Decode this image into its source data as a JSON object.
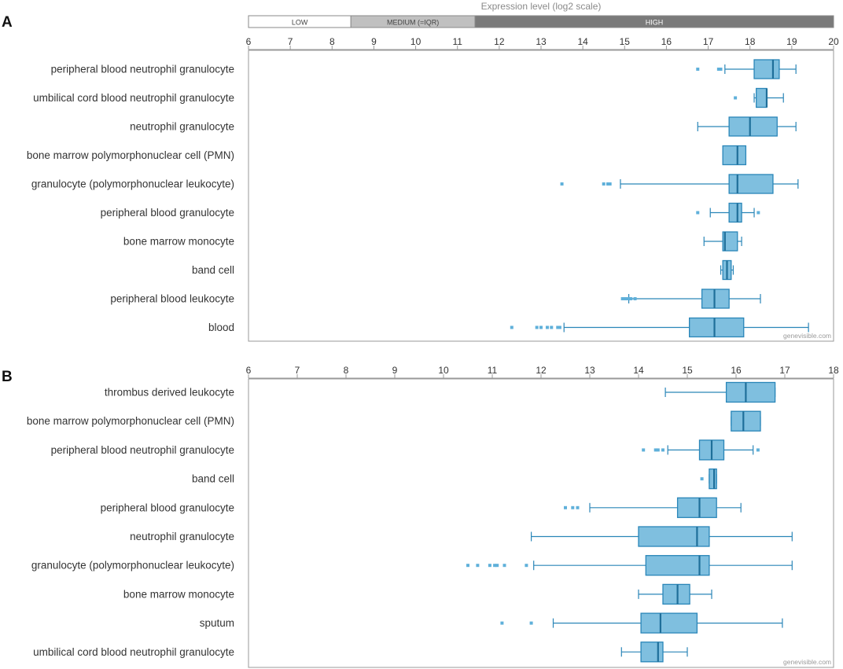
{
  "header": {
    "title": "Expression level (log2 scale)",
    "bands": [
      {
        "label": "LOW",
        "from": 6,
        "to": 8.45,
        "fill": "#ffffff",
        "text_color": "#444444"
      },
      {
        "label": "MEDIUM (=IQR)",
        "from": 8.45,
        "to": 11.42,
        "fill": "#c0c0c0",
        "text_color": "#444444"
      },
      {
        "label": "HIGH",
        "from": 11.42,
        "to": 20,
        "fill": "#7a7a7a",
        "text_color": "#ffffff"
      }
    ]
  },
  "watermark": "genevisible.com",
  "colors": {
    "box_fill": "#7fbfdf",
    "box_stroke": "#2a86b8",
    "whisker": "#2a86b8",
    "outlier": "#5fb0da",
    "frame": "#999999"
  },
  "chart_data": [
    {
      "type": "boxplot",
      "panel_label": "A",
      "xlabel": "Expression level (log2 scale)",
      "xlim": [
        6,
        20
      ],
      "ticks": [
        6,
        7,
        8,
        9,
        10,
        11,
        12,
        13,
        14,
        15,
        16,
        17,
        18,
        19,
        20
      ],
      "categories": [
        {
          "label": "peripheral blood neutrophil granulocyte",
          "whisker_low": 17.4,
          "q1": 18.1,
          "median": 18.55,
          "q3": 18.7,
          "whisker_high": 19.1,
          "outliers": [
            16.75,
            17.25,
            17.3
          ]
        },
        {
          "label": "umbilical cord blood neutrophil granulocyte",
          "whisker_low": 18.1,
          "q1": 18.15,
          "median": 18.4,
          "q3": 18.4,
          "whisker_high": 18.8,
          "outliers": [
            17.65
          ]
        },
        {
          "label": "neutrophil granulocyte",
          "whisker_low": 16.75,
          "q1": 17.5,
          "median": 18.0,
          "q3": 18.65,
          "whisker_high": 19.1,
          "outliers": []
        },
        {
          "label": "bone marrow polymorphonuclear cell (PMN)",
          "whisker_low": 17.35,
          "q1": 17.35,
          "median": 17.7,
          "q3": 17.9,
          "whisker_high": 17.9,
          "outliers": []
        },
        {
          "label": "granulocyte (polymorphonuclear leukocyte)",
          "whisker_low": 14.9,
          "q1": 17.5,
          "median": 17.7,
          "q3": 18.55,
          "whisker_high": 19.15,
          "outliers": [
            13.5,
            14.5,
            14.6,
            14.65
          ]
        },
        {
          "label": "peripheral blood granulocyte",
          "whisker_low": 17.05,
          "q1": 17.5,
          "median": 17.7,
          "q3": 17.8,
          "whisker_high": 18.1,
          "outliers": [
            16.75,
            18.2
          ]
        },
        {
          "label": "bone marrow monocyte",
          "whisker_low": 16.9,
          "q1": 17.35,
          "median": 17.4,
          "q3": 17.7,
          "whisker_high": 17.8,
          "outliers": []
        },
        {
          "label": "band cell",
          "whisker_low": 17.3,
          "q1": 17.35,
          "median": 17.45,
          "q3": 17.55,
          "whisker_high": 17.6,
          "outliers": []
        },
        {
          "label": "peripheral blood leukocyte",
          "whisker_low": 15.1,
          "q1": 16.85,
          "median": 17.15,
          "q3": 17.5,
          "whisker_high": 18.25,
          "outliers": [
            14.95,
            15.0,
            15.05,
            15.1,
            15.15,
            15.25
          ]
        },
        {
          "label": "blood",
          "whisker_low": 13.55,
          "q1": 16.55,
          "median": 17.15,
          "q3": 17.85,
          "whisker_high": 19.4,
          "outliers": [
            12.3,
            12.9,
            13.0,
            13.15,
            13.25,
            13.4,
            13.45
          ]
        }
      ]
    },
    {
      "type": "boxplot",
      "panel_label": "B",
      "xlim": [
        6,
        18
      ],
      "ticks": [
        6,
        7,
        8,
        9,
        10,
        11,
        12,
        13,
        14,
        15,
        16,
        17,
        18
      ],
      "categories": [
        {
          "label": "thrombus derived leukocyte",
          "whisker_low": 14.55,
          "q1": 15.8,
          "median": 16.2,
          "q3": 16.8,
          "whisker_high": 16.8,
          "outliers": []
        },
        {
          "label": "bone marrow polymorphonuclear cell (PMN)",
          "whisker_low": 15.9,
          "q1": 15.9,
          "median": 16.15,
          "q3": 16.5,
          "whisker_high": 16.5,
          "outliers": []
        },
        {
          "label": "peripheral blood neutrophil granulocyte",
          "whisker_low": 14.6,
          "q1": 15.25,
          "median": 15.5,
          "q3": 15.75,
          "whisker_high": 16.35,
          "outliers": [
            14.1,
            14.35,
            14.4,
            14.5,
            16.45
          ]
        },
        {
          "label": "band cell",
          "whisker_low": 15.45,
          "q1": 15.45,
          "median": 15.55,
          "q3": 15.6,
          "whisker_high": 15.6,
          "outliers": [
            15.3
          ]
        },
        {
          "label": "peripheral blood granulocyte",
          "whisker_low": 13.0,
          "q1": 14.8,
          "median": 15.25,
          "q3": 15.6,
          "whisker_high": 16.1,
          "outliers": [
            12.5,
            12.65,
            12.75
          ]
        },
        {
          "label": "neutrophil granulocyte",
          "whisker_low": 11.8,
          "q1": 14.0,
          "median": 15.2,
          "q3": 15.45,
          "whisker_high": 17.15,
          "outliers": []
        },
        {
          "label": "granulocyte (polymorphonuclear leukocyte)",
          "whisker_low": 11.85,
          "q1": 14.15,
          "median": 15.25,
          "q3": 15.45,
          "whisker_high": 17.15,
          "outliers": [
            10.5,
            10.7,
            10.95,
            11.05,
            11.1,
            11.25,
            11.7
          ]
        },
        {
          "label": "bone marrow monocyte",
          "whisker_low": 14.0,
          "q1": 14.5,
          "median": 14.8,
          "q3": 15.05,
          "whisker_high": 15.5,
          "outliers": []
        },
        {
          "label": "sputum",
          "whisker_low": 12.25,
          "q1": 14.05,
          "median": 14.45,
          "q3": 15.2,
          "whisker_high": 16.95,
          "outliers": [
            11.2,
            11.8
          ]
        },
        {
          "label": "umbilical cord blood neutrophil granulocyte",
          "whisker_low": 13.65,
          "q1": 14.05,
          "median": 14.4,
          "q3": 14.5,
          "whisker_high": 15.0,
          "outliers": []
        }
      ]
    }
  ]
}
